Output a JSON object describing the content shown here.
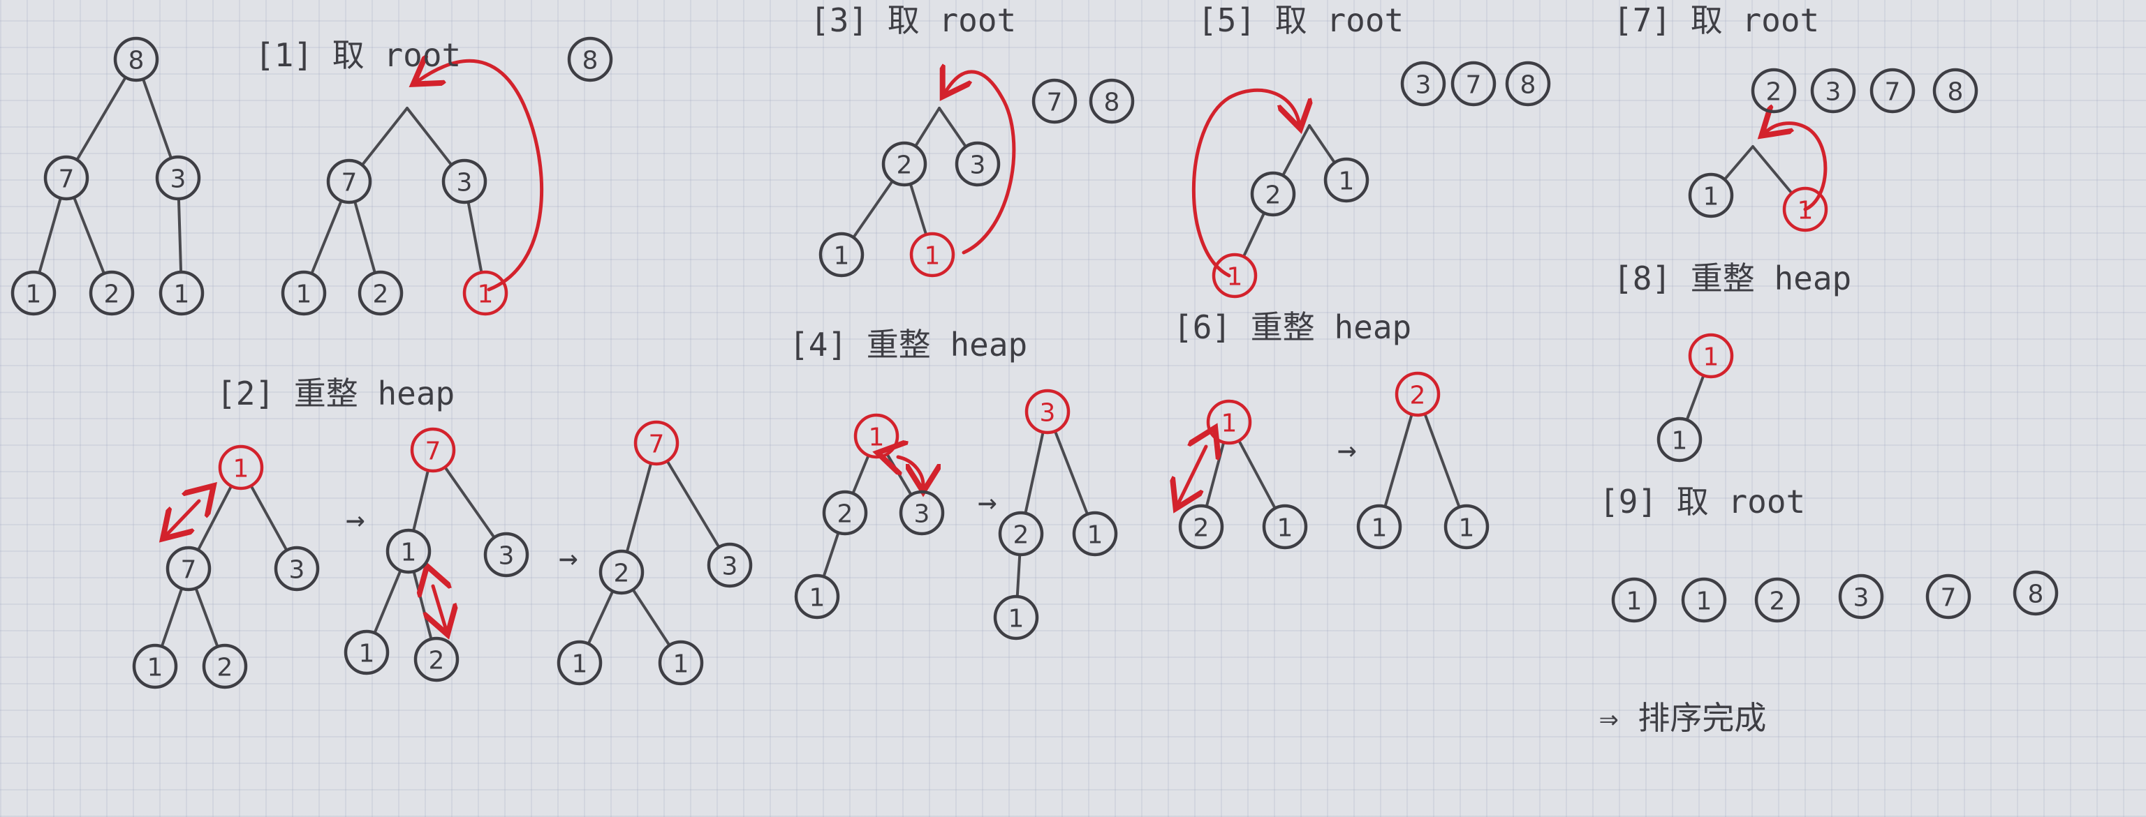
{
  "colors": {
    "ink": "#3e3e44",
    "red": "#d3222c",
    "paper": "#e0e2e7"
  },
  "arrow_symbol": "→",
  "steps": [
    {
      "id": "s1",
      "label": "[1] 取 root"
    },
    {
      "id": "s2",
      "label": "[2] 重整 heap"
    },
    {
      "id": "s3",
      "label": "[3] 取 root"
    },
    {
      "id": "s4",
      "label": "[4] 重整 heap"
    },
    {
      "id": "s5",
      "label": "[5] 取 root"
    },
    {
      "id": "s6",
      "label": "[6] 重整 heap"
    },
    {
      "id": "s7",
      "label": "[7] 取 root"
    },
    {
      "id": "s8",
      "label": "[8] 重整 heap"
    },
    {
      "id": "s9",
      "label": "[9] 取 root"
    }
  ],
  "trees": [
    {
      "id": "t0",
      "nodes": [
        {
          "v": "8",
          "c": "ink"
        },
        {
          "v": "7",
          "c": "ink"
        },
        {
          "v": "3",
          "c": "ink"
        },
        {
          "v": "1",
          "c": "ink"
        },
        {
          "v": "2",
          "c": "ink"
        },
        {
          "v": "1",
          "c": "ink"
        }
      ],
      "edges": [
        [
          0,
          1
        ],
        [
          0,
          2
        ],
        [
          1,
          3
        ],
        [
          1,
          4
        ],
        [
          2,
          5
        ]
      ]
    },
    {
      "id": "t1",
      "nodes": [
        {
          "v": "7",
          "c": "ink"
        },
        {
          "v": "3",
          "c": "ink"
        },
        {
          "v": "1",
          "c": "ink"
        },
        {
          "v": "2",
          "c": "ink"
        },
        {
          "v": "1",
          "c": "red"
        }
      ],
      "edges": [
        [
          0,
          2
        ],
        [
          0,
          3
        ],
        [
          1,
          4
        ]
      ],
      "topEdges": [
        0,
        1
      ]
    },
    {
      "id": "t2a",
      "nodes": [
        {
          "v": "1",
          "c": "red"
        },
        {
          "v": "7",
          "c": "ink"
        },
        {
          "v": "3",
          "c": "ink"
        },
        {
          "v": "1",
          "c": "ink"
        },
        {
          "v": "2",
          "c": "ink"
        }
      ],
      "edges": [
        [
          0,
          1
        ],
        [
          0,
          2
        ],
        [
          1,
          3
        ],
        [
          1,
          4
        ]
      ]
    },
    {
      "id": "t2b",
      "nodes": [
        {
          "v": "7",
          "c": "red"
        },
        {
          "v": "1",
          "c": "ink"
        },
        {
          "v": "3",
          "c": "ink"
        },
        {
          "v": "1",
          "c": "ink"
        },
        {
          "v": "2",
          "c": "ink"
        }
      ],
      "edges": [
        [
          0,
          1
        ],
        [
          0,
          2
        ],
        [
          1,
          3
        ],
        [
          1,
          4
        ]
      ]
    },
    {
      "id": "t2c",
      "nodes": [
        {
          "v": "7",
          "c": "red"
        },
        {
          "v": "2",
          "c": "ink"
        },
        {
          "v": "3",
          "c": "ink"
        },
        {
          "v": "1",
          "c": "ink"
        },
        {
          "v": "1",
          "c": "ink"
        }
      ],
      "edges": [
        [
          0,
          1
        ],
        [
          0,
          2
        ],
        [
          1,
          3
        ],
        [
          1,
          4
        ]
      ]
    },
    {
      "id": "t3",
      "nodes": [
        {
          "v": "2",
          "c": "ink"
        },
        {
          "v": "3",
          "c": "ink"
        },
        {
          "v": "1",
          "c": "ink"
        },
        {
          "v": "1",
          "c": "red"
        }
      ],
      "edges": [
        [
          0,
          2
        ],
        [
          0,
          3
        ]
      ],
      "topEdges": [
        0,
        1
      ]
    },
    {
      "id": "t4a",
      "nodes": [
        {
          "v": "1",
          "c": "red"
        },
        {
          "v": "2",
          "c": "ink"
        },
        {
          "v": "3",
          "c": "ink"
        },
        {
          "v": "1",
          "c": "ink"
        }
      ],
      "edges": [
        [
          0,
          1
        ],
        [
          0,
          2
        ],
        [
          1,
          3
        ]
      ]
    },
    {
      "id": "t4b",
      "nodes": [
        {
          "v": "3",
          "c": "red"
        },
        {
          "v": "2",
          "c": "ink"
        },
        {
          "v": "1",
          "c": "ink"
        },
        {
          "v": "1",
          "c": "ink"
        }
      ],
      "edges": [
        [
          0,
          1
        ],
        [
          0,
          2
        ],
        [
          1,
          3
        ]
      ]
    },
    {
      "id": "t5",
      "nodes": [
        {
          "v": "2",
          "c": "ink"
        },
        {
          "v": "1",
          "c": "ink"
        },
        {
          "v": "1",
          "c": "red"
        }
      ],
      "edges": [
        [
          0,
          2
        ]
      ],
      "topEdges": [
        0,
        1
      ]
    },
    {
      "id": "t6a",
      "nodes": [
        {
          "v": "1",
          "c": "red"
        },
        {
          "v": "2",
          "c": "ink"
        },
        {
          "v": "1",
          "c": "ink"
        }
      ],
      "edges": [
        [
          0,
          1
        ],
        [
          0,
          2
        ]
      ]
    },
    {
      "id": "t6b",
      "nodes": [
        {
          "v": "2",
          "c": "red"
        },
        {
          "v": "1",
          "c": "ink"
        },
        {
          "v": "1",
          "c": "ink"
        }
      ],
      "edges": [
        [
          0,
          1
        ],
        [
          0,
          2
        ]
      ]
    },
    {
      "id": "t7",
      "nodes": [
        {
          "v": "1",
          "c": "ink"
        },
        {
          "v": "1",
          "c": "red"
        }
      ],
      "edges": [],
      "topEdges": [
        0,
        1
      ]
    },
    {
      "id": "t8",
      "nodes": [
        {
          "v": "1",
          "c": "red"
        },
        {
          "v": "1",
          "c": "ink"
        }
      ],
      "edges": [
        [
          0,
          1
        ]
      ]
    }
  ],
  "extracted": [
    {
      "id": "e1",
      "values": [
        "8"
      ]
    },
    {
      "id": "e3",
      "values": [
        "7",
        "8"
      ]
    },
    {
      "id": "e5",
      "values": [
        "3",
        "7",
        "8"
      ]
    },
    {
      "id": "e7",
      "values": [
        "2",
        "3",
        "7",
        "8"
      ]
    },
    {
      "id": "e9",
      "values": [
        "1",
        "1",
        "2",
        "3",
        "7",
        "8"
      ]
    }
  ],
  "conclusion": "⇒ 排序完成"
}
